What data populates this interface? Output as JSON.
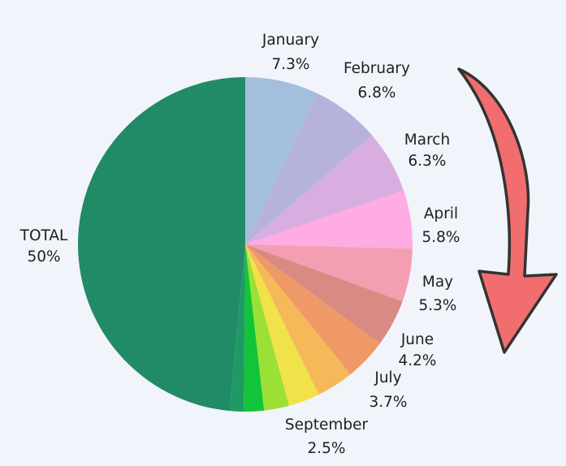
{
  "chart_data": {
    "type": "pie",
    "title": "",
    "start": "top",
    "direction": "clockwise",
    "slices": [
      {
        "label": "January",
        "value": 7.3,
        "display": "7.3%",
        "color": "#a3bfdc",
        "show_label": true
      },
      {
        "label": "February",
        "value": 6.8,
        "display": "6.8%",
        "color": "#b5b3db",
        "show_label": true
      },
      {
        "label": "March",
        "value": 6.3,
        "display": "6.3%",
        "color": "#d8aee0",
        "show_label": true
      },
      {
        "label": "April",
        "value": 5.8,
        "display": "5.8%",
        "color": "#ffabe4",
        "show_label": true
      },
      {
        "label": "May",
        "value": 5.3,
        "display": "5.3%",
        "color": "#f49eb2",
        "show_label": true
      },
      {
        "label": "",
        "value": 4.7,
        "display": "",
        "color": "#d98a83",
        "show_label": false
      },
      {
        "label": "June",
        "value": 4.2,
        "display": "4.2%",
        "color": "#ef9a66",
        "show_label": true
      },
      {
        "label": "July",
        "value": 3.7,
        "display": "3.7%",
        "color": "#f6b95a",
        "show_label": true
      },
      {
        "label": "",
        "value": 3.1,
        "display": "",
        "color": "#f1e24a",
        "show_label": false
      },
      {
        "label": "September",
        "value": 2.5,
        "display": "2.5%",
        "color": "#9be036",
        "show_label": true
      },
      {
        "label": "",
        "value": 2.0,
        "display": "",
        "color": "#12c43a",
        "show_label": false
      },
      {
        "label": "",
        "value": 1.4,
        "display": "",
        "color": "#1f9a63",
        "show_label": false
      },
      {
        "label": "TOTAL",
        "value": 50.0,
        "display": "50%",
        "color": "#218a67",
        "show_label": true
      }
    ],
    "annotation": {
      "type": "arrow",
      "direction": "clockwise",
      "color": "#f26d6d",
      "outline": "#333333"
    }
  }
}
